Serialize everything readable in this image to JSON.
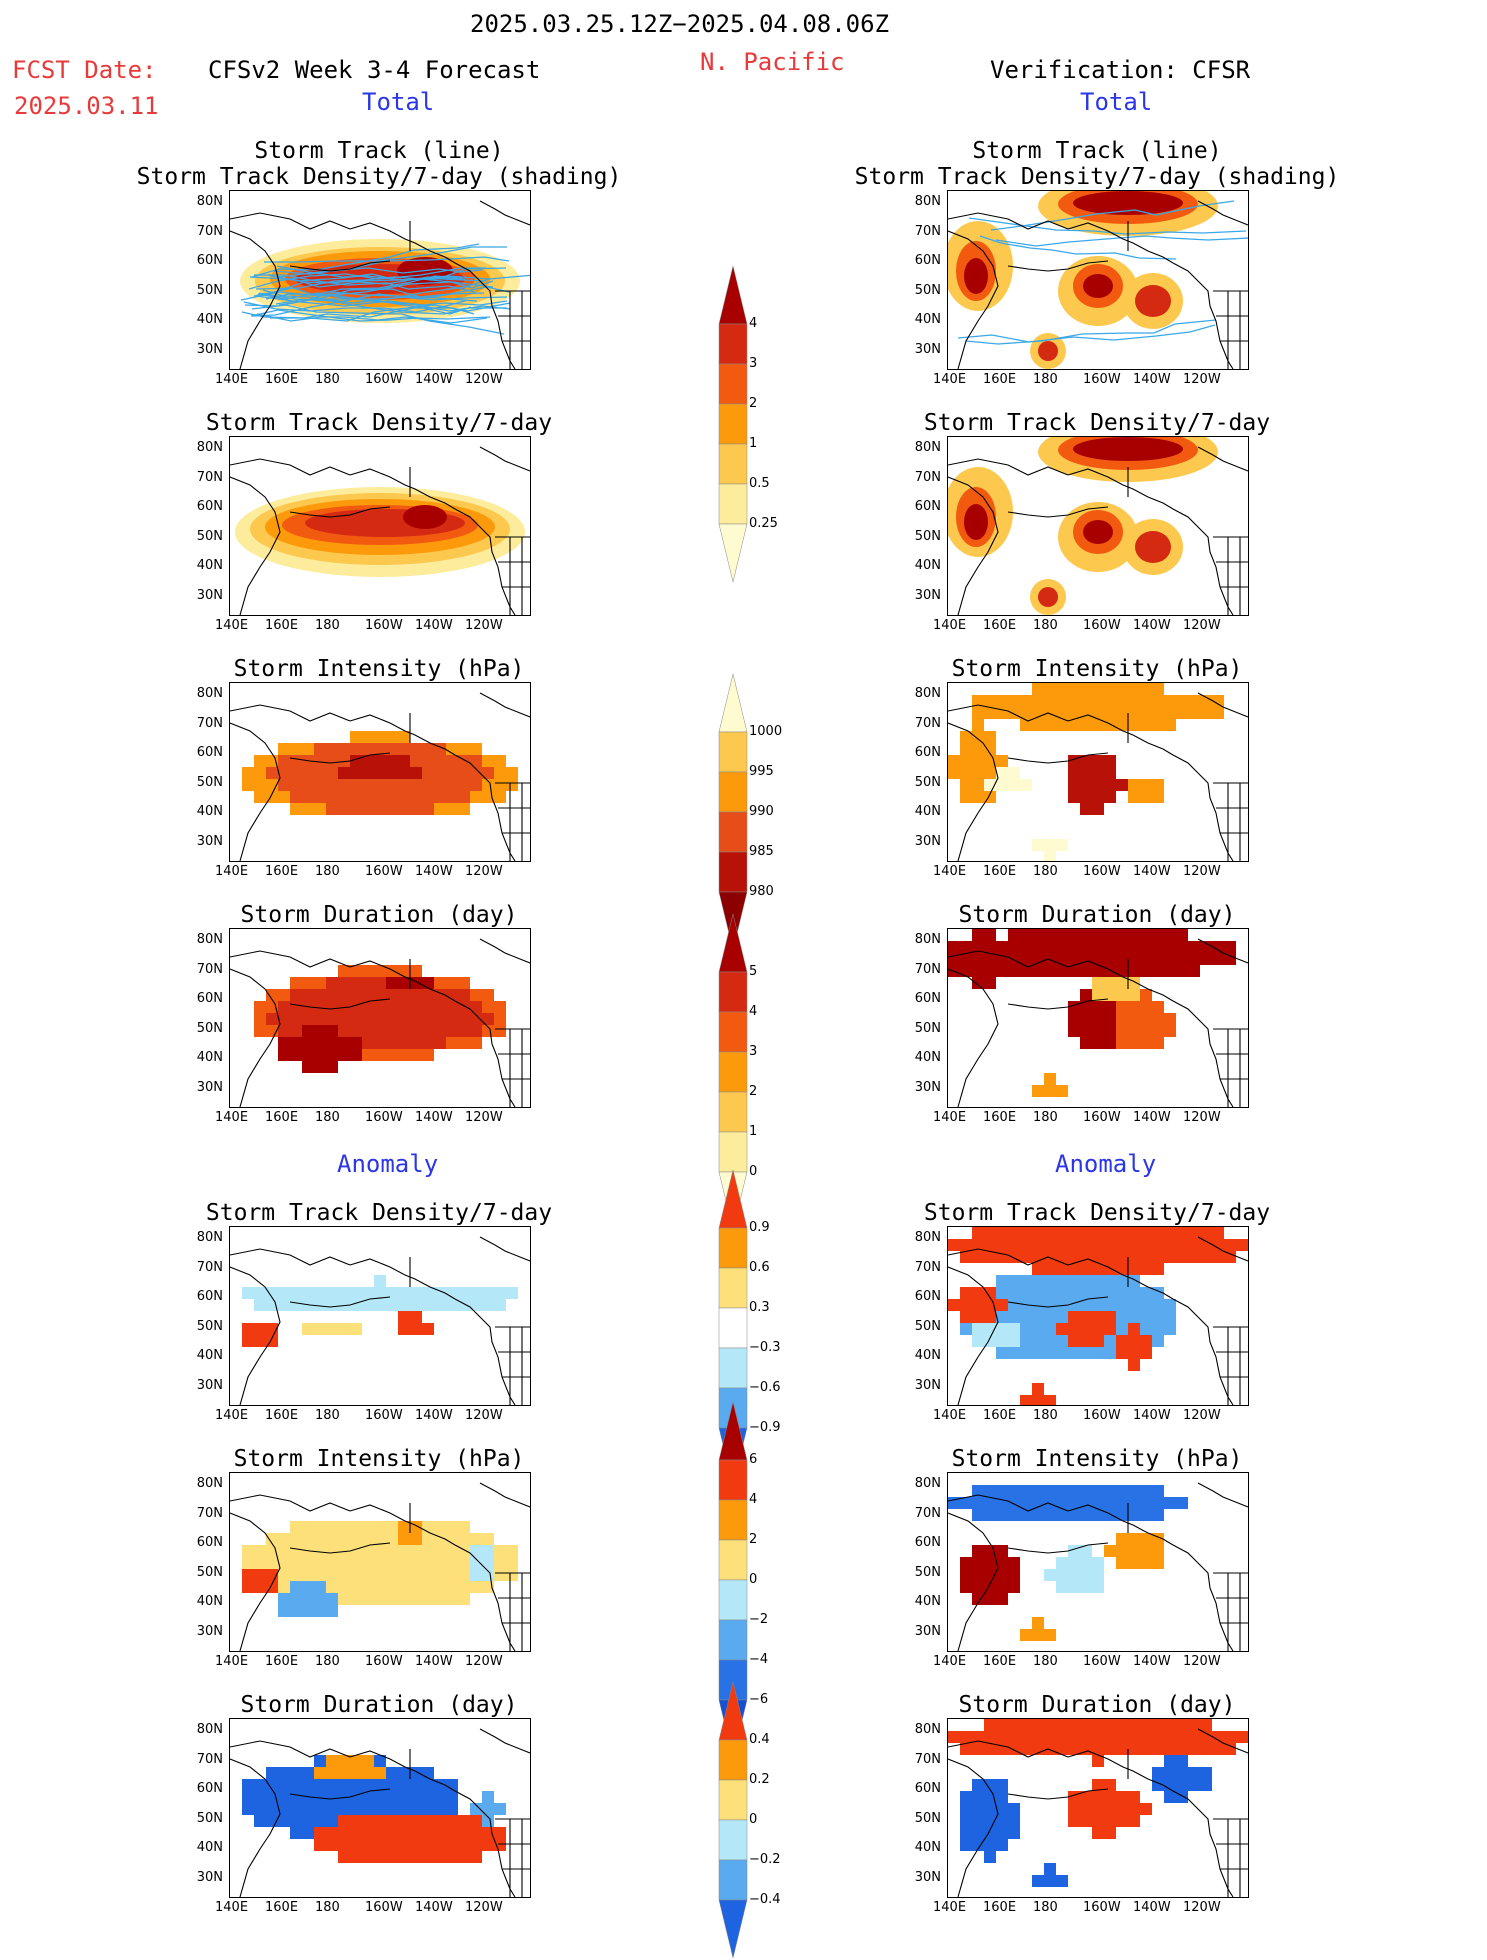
{
  "header": {
    "date_range": "2025.03.25.12Z−2025.04.08.06Z",
    "region": "N. Pacific",
    "fcst_label": "FCST Date:",
    "fcst_date": "2025.03.11",
    "left_title": "CFSv2 Week 3-4 Forecast",
    "right_title": "Verification: CFSR"
  },
  "sections": {
    "total": "Total",
    "anomaly": "Anomaly"
  },
  "panel_titles": {
    "track_line": "Storm Track (line)",
    "track_density_shading": "Storm Track Density/7-day (shading)",
    "track_density": "Storm Track Density/7-day",
    "intensity": "Storm Intensity (hPa)",
    "duration": "Storm Duration (day)"
  },
  "axes": {
    "lat_labels": [
      "80N",
      "70N",
      "60N",
      "50N",
      "40N",
      "30N"
    ],
    "lon_labels": [
      "140E",
      "160E",
      "180",
      "160W",
      "140W",
      "120W"
    ]
  },
  "colorbars": {
    "density": {
      "labels": [
        "4",
        "3",
        "2",
        "1",
        "0.5",
        "0.25"
      ],
      "colors": [
        "#a80000",
        "#d42a12",
        "#f25a10",
        "#fc9a0c",
        "#fcc84e",
        "#fdec9c",
        "#fffbd0"
      ]
    },
    "intensity": {
      "labels": [
        "1000",
        "995",
        "990",
        "985",
        "980"
      ],
      "colors": [
        "#fffbd0",
        "#fcc84e",
        "#fc9a0c",
        "#e64d18",
        "#b81208",
        "#8c0000"
      ]
    },
    "duration": {
      "labels": [
        "5",
        "4",
        "3",
        "2",
        "1",
        "0"
      ],
      "colors": [
        "#a80000",
        "#d42a12",
        "#f25a10",
        "#fc9a0c",
        "#fcc84e",
        "#fdec9c",
        "#fffbd0"
      ]
    },
    "anom_density": {
      "labels": [
        "0.9",
        "0.6",
        "0.3",
        "−0.3",
        "−0.6",
        "−0.9"
      ],
      "colors": [
        "#f23a10",
        "#fc9a0c",
        "#fde07a",
        "#ffffff",
        "#b4e8f8",
        "#5aaaf0",
        "#1e64e0"
      ]
    },
    "anom_intensity": {
      "labels": [
        "6",
        "4",
        "2",
        "0",
        "−2",
        "−4",
        "−6"
      ],
      "colors": [
        "#a80000",
        "#f23a10",
        "#fc9a0c",
        "#fde07a",
        "#b4e8f8",
        "#5aaaf0",
        "#2872e6",
        "#1450d0"
      ]
    },
    "anom_duration": {
      "labels": [
        "0.4",
        "0.2",
        "0",
        "−0.2",
        "−0.4"
      ],
      "colors": [
        "#f23a10",
        "#fc9a0c",
        "#fde07a",
        "#b4e8f8",
        "#5aaaf0",
        "#1e64e0"
      ]
    }
  }
}
